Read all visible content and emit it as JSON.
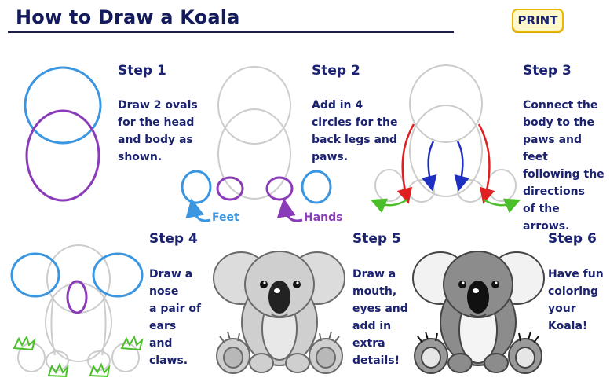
{
  "header": {
    "title": "How to Draw a Koala",
    "print_label": "PRINT"
  },
  "steps": [
    {
      "heading": "Step 1",
      "text": "Draw 2 ovals\nfor the head\nand body as\nshown."
    },
    {
      "heading": "Step 2",
      "text": "Add in 4\ncircles for the\nback legs and\npaws."
    },
    {
      "heading": "Step 3",
      "text": "Connect the\nbody to the\npaws and feet\nfollowing the\ndirections\nof the arrows."
    },
    {
      "heading": "Step 4",
      "text": "Draw a\nnose\na pair of\nears\nand\nclaws."
    },
    {
      "heading": "Step 5",
      "text": "Draw a\nmouth,\neyes and\nadd in\nextra\ndetails!"
    },
    {
      "heading": "Step 6",
      "text": "Have fun\ncoloring\nyour\nKoala!"
    }
  ],
  "labels": {
    "feet": "Feet",
    "hands": "Hands"
  },
  "colors": {
    "blue": "#3a96e0",
    "purple": "#8a3cb8",
    "guide": "#cccccc",
    "red": "#e02020",
    "navy": "#1e2fc0",
    "green": "#4bbf2a",
    "text": "#1b2270"
  }
}
